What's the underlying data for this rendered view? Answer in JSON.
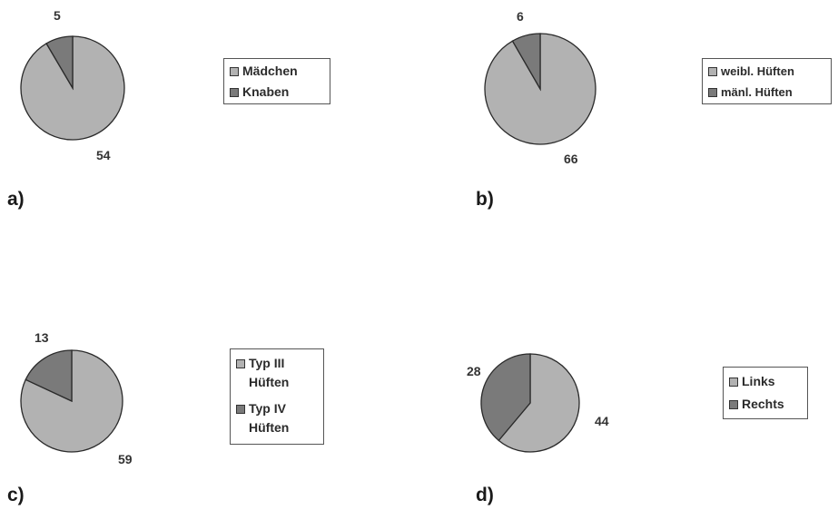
{
  "colors": {
    "slice_large": "#b2b2b2",
    "slice_small": "#7a7a7a",
    "outline": "#2a2a2a"
  },
  "chart_data": [
    {
      "type": "pie",
      "panel": "a)",
      "slices": [
        {
          "name": "Mädchen",
          "value": 54
        },
        {
          "name": "Knaben",
          "value": 5
        }
      ]
    },
    {
      "type": "pie",
      "panel": "b)",
      "slices": [
        {
          "name": "weibl. Hüften",
          "value": 66
        },
        {
          "name": "mänl. Hüften",
          "value": 6
        }
      ]
    },
    {
      "type": "pie",
      "panel": "c)",
      "slices": [
        {
          "name": "Typ III Hüften",
          "value": 59
        },
        {
          "name": "Typ IV Hüften",
          "value": 13
        }
      ]
    },
    {
      "type": "pie",
      "panel": "d)",
      "slices": [
        {
          "name": "Links",
          "value": 44
        },
        {
          "name": "Rechts",
          "value": 28
        }
      ]
    }
  ]
}
